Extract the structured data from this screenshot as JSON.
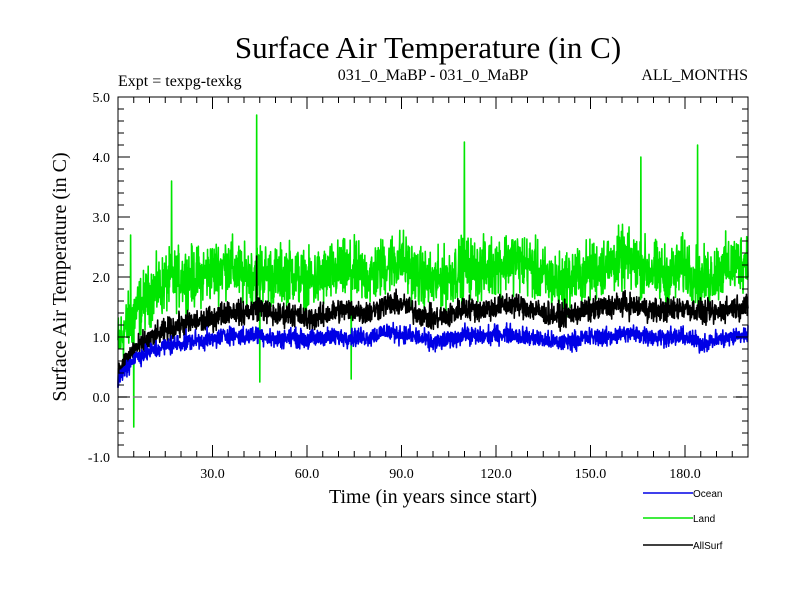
{
  "chart_data": {
    "type": "line",
    "title": "Surface Air Temperature (in C)",
    "subtitle_left": "Expt = texpg-texkg",
    "subtitle_center": "031_0_MaBP - 031_0_MaBP",
    "subtitle_right": "ALL_MONTHS",
    "xlabel": "Time (in years since start)",
    "ylabel": "Surface Air Temperature (in C)",
    "xlim": [
      0,
      200
    ],
    "ylim": [
      -1.0,
      5.0
    ],
    "x_ticks": [
      30,
      60,
      90,
      120,
      150,
      180
    ],
    "x_tick_labels": [
      "30.0",
      "60.0",
      "90.0",
      "120.0",
      "150.0",
      "180.0"
    ],
    "y_ticks": [
      -1,
      0,
      1,
      2,
      3,
      4,
      5
    ],
    "y_tick_labels": [
      "-1.0",
      "0.0",
      "1.0",
      "2.0",
      "3.0",
      "4.0",
      "5.0"
    ],
    "zero_line": true,
    "series": [
      {
        "name": "Land",
        "color": "#00e600",
        "x": [
          0,
          5,
          10,
          15,
          20,
          25,
          30,
          35,
          40,
          45,
          50,
          55,
          60,
          65,
          70,
          75,
          80,
          85,
          90,
          95,
          100,
          105,
          110,
          115,
          120,
          125,
          130,
          135,
          140,
          145,
          150,
          155,
          160,
          165,
          170,
          175,
          180,
          185,
          190,
          195,
          200
        ],
        "values": [
          0.9,
          1.4,
          1.7,
          1.9,
          2.0,
          2.0,
          2.1,
          2.2,
          2.0,
          2.1,
          2.0,
          2.1,
          1.9,
          2.0,
          2.1,
          2.1,
          2.0,
          2.2,
          2.3,
          2.0,
          1.9,
          2.0,
          2.2,
          2.1,
          2.2,
          2.3,
          2.2,
          2.0,
          1.9,
          2.0,
          2.1,
          2.2,
          2.3,
          2.2,
          2.1,
          2.0,
          2.2,
          1.9,
          2.1,
          2.2,
          2.3
        ],
        "peaks": [
          [
            4,
            2.7
          ],
          [
            5,
            -0.5
          ],
          [
            17,
            3.6
          ],
          [
            44,
            4.7
          ],
          [
            45,
            0.25
          ],
          [
            74,
            0.3
          ],
          [
            110,
            4.25
          ],
          [
            166,
            4.0
          ],
          [
            184,
            4.2
          ]
        ]
      },
      {
        "name": "AllSurf",
        "color": "#000000",
        "x": [
          0,
          5,
          10,
          15,
          20,
          25,
          30,
          35,
          40,
          45,
          50,
          55,
          60,
          65,
          70,
          75,
          80,
          85,
          90,
          95,
          100,
          105,
          110,
          115,
          120,
          125,
          130,
          135,
          140,
          145,
          150,
          155,
          160,
          165,
          170,
          175,
          180,
          185,
          190,
          195,
          200
        ],
        "values": [
          0.4,
          0.8,
          0.95,
          1.1,
          1.2,
          1.25,
          1.3,
          1.45,
          1.4,
          1.5,
          1.35,
          1.4,
          1.3,
          1.35,
          1.45,
          1.45,
          1.4,
          1.55,
          1.55,
          1.4,
          1.3,
          1.35,
          1.5,
          1.45,
          1.5,
          1.55,
          1.5,
          1.4,
          1.35,
          1.4,
          1.45,
          1.5,
          1.55,
          1.5,
          1.45,
          1.45,
          1.5,
          1.4,
          1.4,
          1.5,
          1.5
        ],
        "peaks": [
          [
            44,
            2.35
          ]
        ]
      },
      {
        "name": "Ocean",
        "color": "#0000e6",
        "x": [
          0,
          5,
          10,
          15,
          20,
          25,
          30,
          35,
          40,
          45,
          50,
          55,
          60,
          65,
          70,
          75,
          80,
          85,
          90,
          95,
          100,
          105,
          110,
          115,
          120,
          125,
          130,
          135,
          140,
          145,
          150,
          155,
          160,
          165,
          170,
          175,
          180,
          185,
          190,
          195,
          200
        ],
        "values": [
          0.3,
          0.65,
          0.75,
          0.85,
          0.9,
          0.95,
          0.95,
          1.05,
          1.0,
          1.05,
          0.95,
          1.0,
          0.95,
          1.0,
          1.0,
          1.0,
          1.0,
          1.1,
          1.05,
          1.0,
          0.9,
          0.95,
          1.05,
          1.0,
          1.05,
          1.05,
          1.0,
          0.95,
          0.9,
          0.95,
          1.0,
          1.0,
          1.05,
          1.05,
          1.0,
          1.0,
          1.0,
          0.9,
          0.95,
          1.0,
          1.05
        ],
        "peaks": [
          [
            0,
            0.15
          ]
        ]
      }
    ],
    "legend": {
      "placement": "bottom-right, outside plot",
      "entries": [
        {
          "label": "Ocean",
          "color": "#0000e6"
        },
        {
          "label": "Land",
          "color": "#00e600"
        },
        {
          "label": "AllSurf",
          "color": "#000000"
        }
      ]
    }
  }
}
